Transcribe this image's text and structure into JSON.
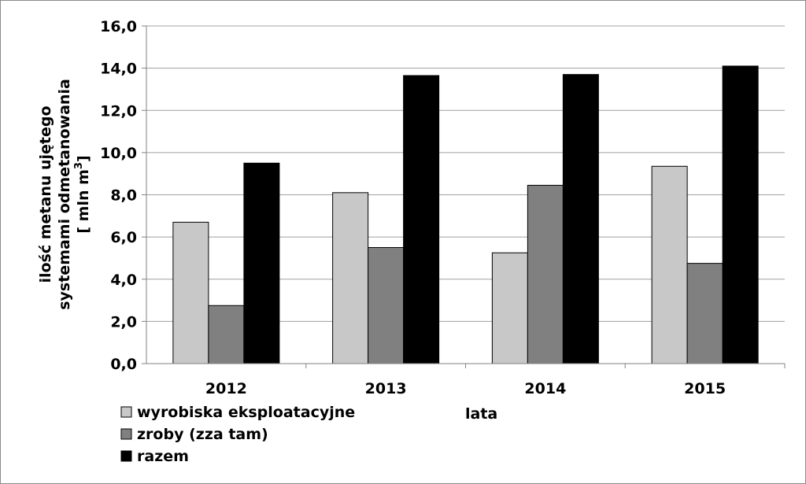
{
  "chart_data": {
    "type": "bar",
    "categories": [
      "2012",
      "2013",
      "2014",
      "2015"
    ],
    "series": [
      {
        "name": "wyrobiska eksploatacyjne",
        "values": [
          6.7,
          8.1,
          5.25,
          9.35
        ],
        "color": "#c8c8c8"
      },
      {
        "name": "zroby (zza tam)",
        "values": [
          2.75,
          5.5,
          8.45,
          4.75
        ],
        "color": "#808080"
      },
      {
        "name": "razem",
        "values": [
          9.5,
          13.65,
          13.7,
          14.1
        ],
        "color": "#000000"
      }
    ],
    "ylim": [
      0,
      16
    ],
    "yticks": [
      "0,0",
      "2,0",
      "4,0",
      "6,0",
      "8,0",
      "10,0",
      "12,0",
      "14,0",
      "16,0"
    ],
    "ylabel": {
      "line1": "ilość metanu ujętego",
      "line2": "systemami odmetanowania",
      "line3_prefix": "[ mln m",
      "line3_sup": "3",
      "line3_suffix": "]"
    },
    "xlabel": "lata",
    "grid": true,
    "legend_position": "bottom-left"
  }
}
